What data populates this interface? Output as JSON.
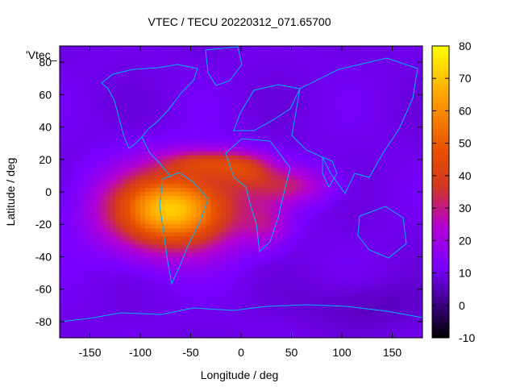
{
  "chart_data": {
    "type": "heatmap",
    "title": "VTEC / TECU 20220312_071.65700",
    "xlabel": "Longitude / deg",
    "ylabel": "Latitude / deg",
    "series_label": "'Vtec_",
    "xlim": [
      -180,
      180
    ],
    "ylim": [
      -90,
      90
    ],
    "x_ticks": [
      -150,
      -100,
      -50,
      0,
      50,
      100,
      150
    ],
    "y_ticks": [
      -80,
      -60,
      -40,
      -20,
      0,
      20,
      40,
      60,
      80
    ],
    "colorbar": {
      "range": [
        -10,
        80
      ],
      "ticks": [
        -10,
        0,
        10,
        20,
        30,
        40,
        50,
        60,
        70,
        80
      ]
    },
    "grid": false,
    "palette": [
      "#000000",
      "#3d0088",
      "#7a00ff",
      "#b200d4",
      "#d23820",
      "#e85000",
      "#ff9e00",
      "#ffff00"
    ],
    "grid_resolution_deg": [
      5,
      2.5
    ],
    "anomaly_peak": {
      "lon": -68,
      "lat": -11,
      "value": 72
    },
    "background_value": 10,
    "continent_outline_color": "#00b4ff"
  }
}
